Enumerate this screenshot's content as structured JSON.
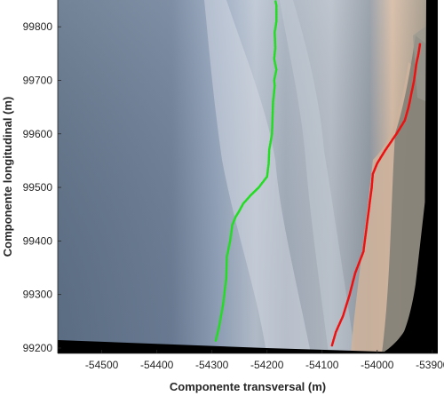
{
  "chart_data": {
    "type": "scatter",
    "title": "",
    "xlabel": "Componente transversal (m)",
    "ylabel": "Componente longitudinal (m)",
    "xlim": [
      -54580,
      -53890
    ],
    "ylim": [
      99190,
      99850
    ],
    "xticks": [
      "-54500",
      "-54400",
      "-54300",
      "-54200",
      "-54100",
      "-54000",
      "-53900"
    ],
    "yticks": [
      "99200",
      "99300",
      "99400",
      "99500",
      "99600",
      "99700",
      "99800"
    ],
    "background": "rectified aerial image of coastline (ocean, surf zone, beach, urban area)",
    "grid": false,
    "series": [
      {
        "color": "#22dd22",
        "x": [
          -54293,
          -54287,
          -54280,
          -54274,
          -54273,
          -54267,
          -54263,
          -54257,
          -54251,
          -54243,
          -54230,
          -54215,
          -54200,
          -54197,
          -54196,
          -54191,
          -54190,
          -54189,
          -54186,
          -54187,
          -54183,
          -54187,
          -54185,
          -54186,
          -54183,
          -54183,
          -54185
        ],
        "y": [
          99214,
          99240,
          99280,
          99330,
          99370,
          99400,
          99430,
          99445,
          99455,
          99470,
          99485,
          99500,
          99520,
          99545,
          99570,
          99600,
          99630,
          99660,
          99690,
          99700,
          99720,
          99740,
          99760,
          99790,
          99810,
          99840,
          99850
        ]
      },
      {
        "color": "#ee1111",
        "x": [
          -54082,
          -54075,
          -54062,
          -54050,
          -54040,
          -54025,
          -54020,
          -54015,
          -54010,
          -54008,
          -54000,
          -53985,
          -53965,
          -53950,
          -53943,
          -53937,
          -53933,
          -53929,
          -53925,
          -53922
        ],
        "y": [
          99205,
          99230,
          99260,
          99300,
          99340,
          99380,
          99420,
          99460,
          99500,
          99525,
          99545,
          99570,
          99600,
          99625,
          99650,
          99680,
          99700,
          99730,
          99750,
          99770
        ]
      }
    ]
  }
}
